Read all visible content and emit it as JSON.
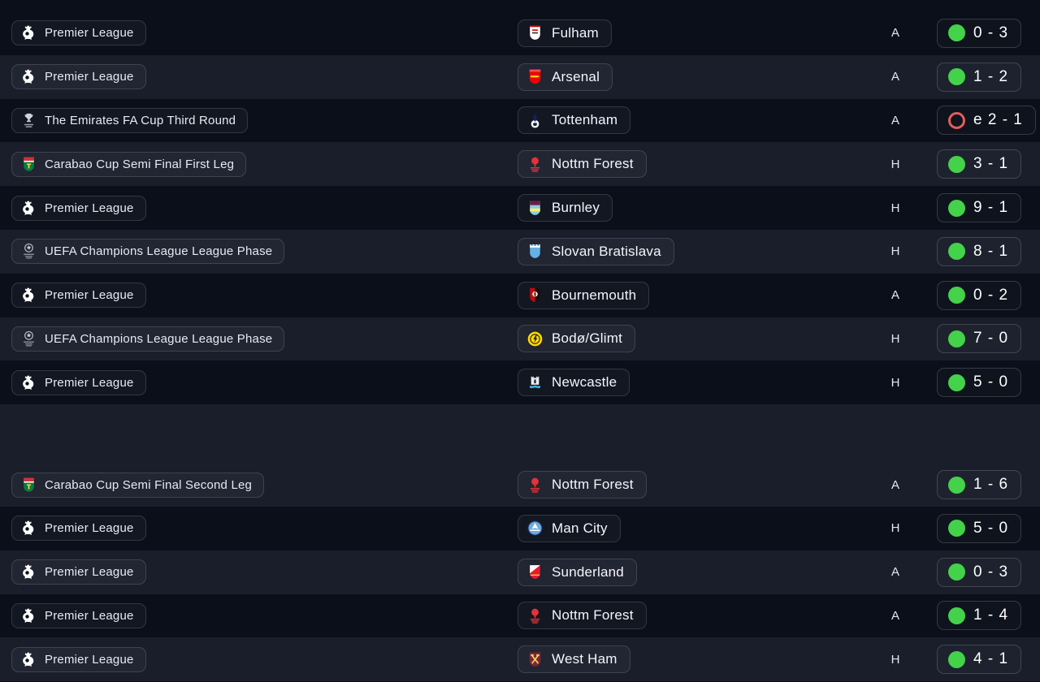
{
  "colors": {
    "background_dark": "#0b0f1a",
    "background_light": "#1a1e2b",
    "win_green": "#43d24a",
    "loss_red": "#e55c5c"
  },
  "sections": [
    {
      "rows": [
        {
          "competition": {
            "label": "Premier League",
            "icon": "premier-league"
          },
          "team": {
            "label": "Fulham",
            "icon": "fulham"
          },
          "venue": "A",
          "result": {
            "type": "win",
            "label": "0 - 3"
          }
        },
        {
          "competition": {
            "label": "Premier League",
            "icon": "premier-league"
          },
          "team": {
            "label": "Arsenal",
            "icon": "arsenal"
          },
          "venue": "A",
          "result": {
            "type": "win",
            "label": "1 - 2"
          }
        },
        {
          "competition": {
            "label": "The Emirates FA Cup Third Round",
            "icon": "fa-cup"
          },
          "team": {
            "label": "Tottenham",
            "icon": "tottenham"
          },
          "venue": "A",
          "result": {
            "type": "loss_extra_time",
            "label": "e 2 - 1"
          }
        },
        {
          "competition": {
            "label": "Carabao Cup Semi Final First Leg",
            "icon": "carabao-cup"
          },
          "team": {
            "label": "Nottm Forest",
            "icon": "nottm-forest"
          },
          "venue": "H",
          "result": {
            "type": "win",
            "label": "3 - 1"
          }
        },
        {
          "competition": {
            "label": "Premier League",
            "icon": "premier-league"
          },
          "team": {
            "label": "Burnley",
            "icon": "burnley"
          },
          "venue": "H",
          "result": {
            "type": "win",
            "label": "9 - 1"
          }
        },
        {
          "competition": {
            "label": "UEFA Champions League League Phase",
            "icon": "uefa-champions-league"
          },
          "team": {
            "label": "Slovan Bratislava",
            "icon": "slovan-bratislava"
          },
          "venue": "H",
          "result": {
            "type": "win",
            "label": "8 - 1"
          }
        },
        {
          "competition": {
            "label": "Premier League",
            "icon": "premier-league"
          },
          "team": {
            "label": "Bournemouth",
            "icon": "bournemouth"
          },
          "venue": "A",
          "result": {
            "type": "win",
            "label": "0 - 2"
          }
        },
        {
          "competition": {
            "label": "UEFA Champions League League Phase",
            "icon": "uefa-champions-league"
          },
          "team": {
            "label": "Bodø/Glimt",
            "icon": "bodo-glimt"
          },
          "venue": "H",
          "result": {
            "type": "win",
            "label": "7 - 0"
          }
        },
        {
          "competition": {
            "label": "Premier League",
            "icon": "premier-league"
          },
          "team": {
            "label": "Newcastle",
            "icon": "newcastle"
          },
          "venue": "H",
          "result": {
            "type": "win",
            "label": "5 - 0"
          }
        }
      ]
    },
    {
      "rows": [
        {
          "competition": {
            "label": "Carabao Cup Semi Final Second Leg",
            "icon": "carabao-cup"
          },
          "team": {
            "label": "Nottm Forest",
            "icon": "nottm-forest"
          },
          "venue": "A",
          "result": {
            "type": "win",
            "label": "1 - 6"
          }
        },
        {
          "competition": {
            "label": "Premier League",
            "icon": "premier-league"
          },
          "team": {
            "label": "Man City",
            "icon": "man-city"
          },
          "venue": "H",
          "result": {
            "type": "win",
            "label": "5 - 0"
          }
        },
        {
          "competition": {
            "label": "Premier League",
            "icon": "premier-league"
          },
          "team": {
            "label": "Sunderland",
            "icon": "sunderland"
          },
          "venue": "A",
          "result": {
            "type": "win",
            "label": "0 - 3"
          }
        },
        {
          "competition": {
            "label": "Premier League",
            "icon": "premier-league"
          },
          "team": {
            "label": "Nottm Forest",
            "icon": "nottm-forest"
          },
          "venue": "A",
          "result": {
            "type": "win",
            "label": "1 - 4"
          }
        },
        {
          "competition": {
            "label": "Premier League",
            "icon": "premier-league"
          },
          "team": {
            "label": "West Ham",
            "icon": "west-ham"
          },
          "venue": "H",
          "result": {
            "type": "win",
            "label": "4 - 1"
          }
        }
      ]
    }
  ]
}
